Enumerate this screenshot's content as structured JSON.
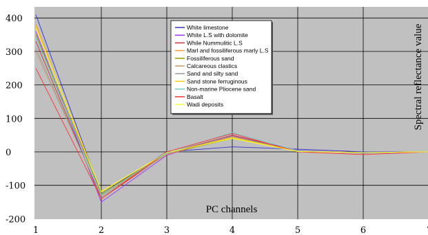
{
  "chart_data": {
    "type": "line",
    "xlabel": "PC channels",
    "ylabel": "Spectral reflectance value",
    "x": [
      1,
      2,
      3,
      4,
      5,
      6,
      7
    ],
    "xlim": [
      1,
      7
    ],
    "ylim": [
      -200,
      420
    ],
    "yticks": [
      400,
      300,
      200,
      100,
      0,
      -100,
      -200
    ],
    "grid": true,
    "legend_position": "top-center",
    "series": [
      {
        "name": "White limestone",
        "color": "#3333cc",
        "values": [
          410,
          -125,
          0,
          15,
          8,
          0,
          0
        ]
      },
      {
        "name": "White L.S with dolomite",
        "color": "#9933ff",
        "values": [
          360,
          -150,
          -10,
          48,
          5,
          -3,
          0
        ]
      },
      {
        "name": "While Nummulitic L.S",
        "color": "#cc3333",
        "values": [
          330,
          -140,
          -5,
          50,
          3,
          -4,
          0
        ]
      },
      {
        "name": "Marl and fossiliferous marly L.S",
        "color": "#ff9933",
        "values": [
          380,
          -130,
          -8,
          45,
          4,
          -2,
          0
        ]
      },
      {
        "name": "Fossiliferous sand",
        "color": "#999900",
        "values": [
          350,
          -125,
          -5,
          40,
          2,
          -2,
          0
        ]
      },
      {
        "name": "Calcareous clastics",
        "color": "#cc9966",
        "values": [
          300,
          -130,
          -5,
          45,
          3,
          -3,
          0
        ]
      },
      {
        "name": "Sand and silty sand",
        "color": "#999999",
        "values": [
          310,
          -135,
          -6,
          47,
          2,
          -3,
          0
        ]
      },
      {
        "name": "Sand stone ferruginous",
        "color": "#ffcc00",
        "values": [
          375,
          -120,
          -3,
          42,
          2,
          -2,
          0
        ]
      },
      {
        "name": "Non-marine Pliocene sand",
        "color": "#66cccc",
        "values": [
          340,
          -128,
          -4,
          58,
          3,
          -3,
          0
        ]
      },
      {
        "name": "Basalt",
        "color": "#ff3333",
        "values": [
          250,
          -140,
          0,
          55,
          0,
          -8,
          0
        ]
      },
      {
        "name": "Wadi deposits",
        "color": "#ffff33",
        "values": [
          370,
          -118,
          -2,
          40,
          1,
          -2,
          0
        ]
      }
    ]
  }
}
